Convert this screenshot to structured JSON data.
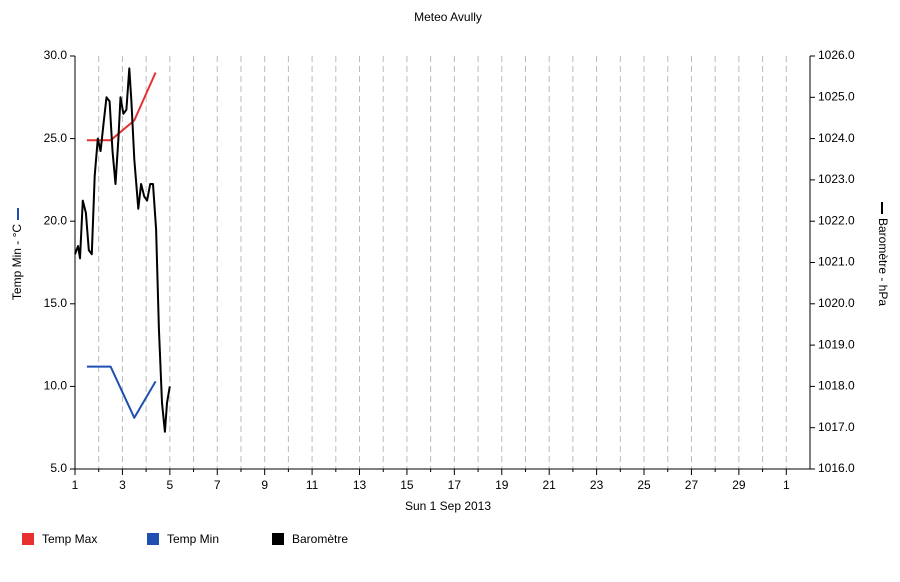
{
  "chart_data": {
    "type": "line",
    "title": "Meteo  Avully",
    "x_label": "Sun 1 Sep 2013",
    "y_label": "Temp Min - °C",
    "y2_label": "Baromètre - hPa",
    "xlim": [
      1,
      32
    ],
    "xticks": [
      1,
      3,
      5,
      7,
      9,
      11,
      13,
      15,
      17,
      19,
      21,
      23,
      25,
      27,
      29,
      {
        "value": 31,
        "label": "1"
      }
    ],
    "x_minor_ticks": [
      2,
      4,
      6,
      8,
      10,
      12,
      14,
      16,
      18,
      20,
      22,
      24,
      26,
      28,
      30
    ],
    "ylim": [
      5,
      30
    ],
    "yticks": [
      {
        "value": 5,
        "label": "5.0"
      },
      {
        "value": 10,
        "label": "10.0"
      },
      {
        "value": 15,
        "label": "15.0"
      },
      {
        "value": 20,
        "label": "20.0"
      },
      {
        "value": 25,
        "label": "25.0"
      },
      {
        "value": 30,
        "label": "30.0"
      }
    ],
    "y2lim": [
      1016,
      1026
    ],
    "y2ticks": [
      {
        "value": 1016,
        "label": "1016.0"
      },
      {
        "value": 1017,
        "label": "1017.0"
      },
      {
        "value": 1018,
        "label": "1018.0"
      },
      {
        "value": 1019,
        "label": "1019.0"
      },
      {
        "value": 1020,
        "label": "1020.0"
      },
      {
        "value": 1021,
        "label": "1021.0"
      },
      {
        "value": 1022,
        "label": "1022.0"
      },
      {
        "value": 1023,
        "label": "1023.0"
      },
      {
        "value": 1024,
        "label": "1024.0"
      },
      {
        "value": 1025,
        "label": "1025.0"
      },
      {
        "value": 1026,
        "label": "1026.0"
      }
    ],
    "grid": true,
    "series": [
      {
        "name": "Temp Max",
        "color": "#e83030",
        "x": [
          1.5,
          2.5,
          3.5,
          4.4
        ],
        "values": [
          24.9,
          24.9,
          26.1,
          29.0
        ]
      },
      {
        "name": "Temp Min",
        "color": "#1f4fb0",
        "x": [
          1.5,
          2.5,
          3.5,
          4.4
        ],
        "values": [
          11.2,
          11.2,
          8.1,
          10.3
        ]
      },
      {
        "name": "Baromètre",
        "color": "#000000",
        "axis": "y2",
        "x": [
          1.0,
          1.13,
          1.21,
          1.33,
          1.46,
          1.58,
          1.71,
          1.83,
          1.96,
          2.08,
          2.21,
          2.33,
          2.46,
          2.58,
          2.71,
          2.83,
          2.92,
          3.04,
          3.17,
          3.29,
          3.38,
          3.5,
          3.67,
          3.79,
          3.92,
          4.04,
          4.17,
          4.29,
          4.42,
          4.54,
          4.67,
          4.79,
          4.88,
          5.0
        ],
        "values": [
          1021.2,
          1021.4,
          1021.1,
          1022.5,
          1022.2,
          1021.3,
          1021.2,
          1023.1,
          1024.0,
          1023.7,
          1024.4,
          1025.0,
          1024.9,
          1023.7,
          1022.9,
          1024.0,
          1025.0,
          1024.6,
          1024.7,
          1025.7,
          1024.9,
          1023.5,
          1022.3,
          1022.9,
          1022.6,
          1022.5,
          1022.9,
          1022.9,
          1021.8,
          1019.4,
          1017.6,
          1016.9,
          1017.6,
          1018.0
        ]
      }
    ]
  }
}
